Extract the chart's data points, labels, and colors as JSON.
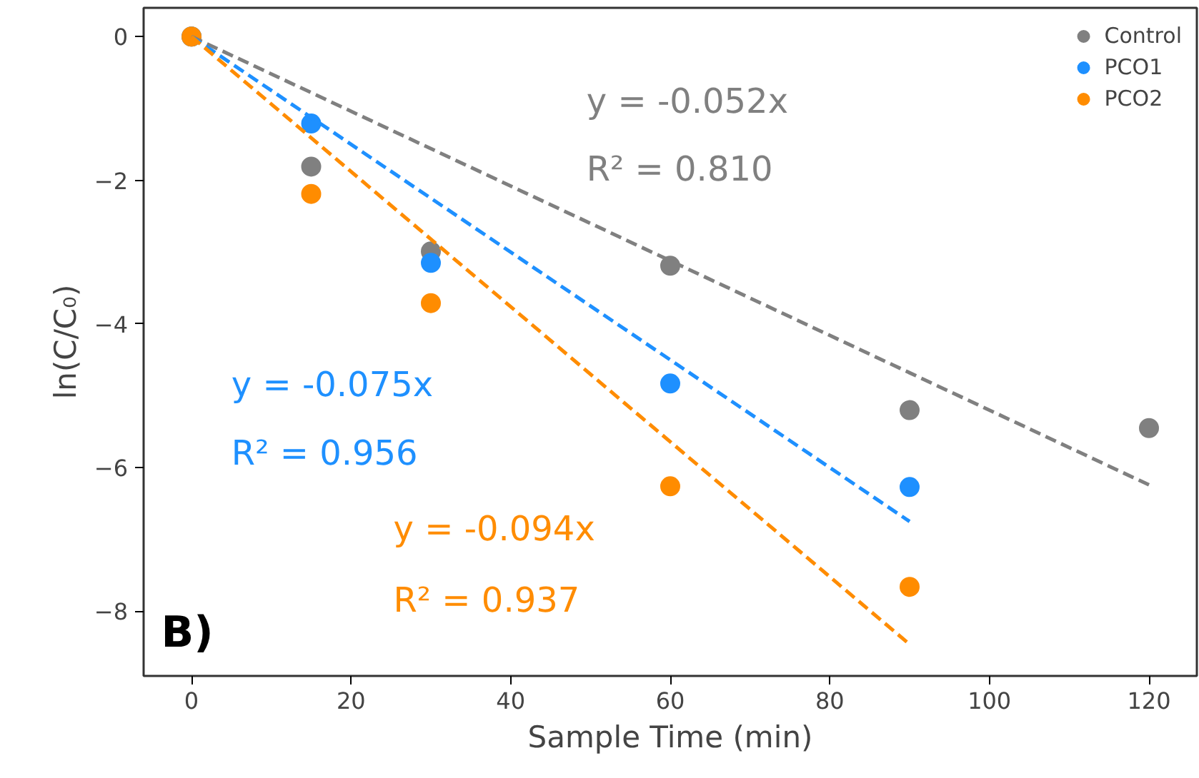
{
  "chart_data": {
    "type": "scatter",
    "xlabel": "Sample Time (min)",
    "ylabel": "ln(C/C₀)",
    "x": [
      0,
      15,
      30,
      60,
      90,
      120
    ],
    "series": [
      {
        "name": "Control",
        "color": "#808080",
        "values": [
          0,
          -1.81,
          -2.99,
          -3.19,
          -5.2,
          -5.45
        ]
      },
      {
        "name": "PCO1",
        "color": "#1e90ff",
        "values": [
          0,
          -1.21,
          -3.15,
          -4.83,
          -6.27,
          null
        ]
      },
      {
        "name": "PCO2",
        "color": "#ff8c00",
        "values": [
          0,
          -2.19,
          -3.71,
          -6.26,
          -7.66,
          null
        ]
      },
      {
        "type": "line",
        "color": "#808080",
        "x": [
          0,
          120
        ],
        "values": [
          0,
          -6.24
        ],
        "line_style": "dashed",
        "marker": "none"
      },
      {
        "type": "line",
        "color": "#1e90ff",
        "x": [
          0,
          90
        ],
        "values": [
          0,
          -6.75
        ],
        "line_style": "dashed",
        "marker": "none"
      },
      {
        "type": "line",
        "color": "#ff8c00",
        "x": [
          0,
          90
        ],
        "values": [
          0,
          -8.46
        ],
        "line_style": "dashed",
        "marker": "none"
      }
    ],
    "annotations": [
      "y = -0.052x",
      "R² = 0.810",
      "y = -0.075x",
      "R² = 0.956",
      "y = -0.094x",
      "R² = 0.937",
      "B)"
    ],
    "xlim": [
      -6,
      126
    ],
    "ylim": [
      -8.9,
      0.4
    ],
    "xticks": [
      0,
      20,
      40,
      60,
      80,
      100,
      120
    ],
    "yticks": [
      -8,
      -6,
      -4,
      -2,
      0
    ],
    "marker": "circle",
    "grid": false,
    "legend": "top right"
  }
}
